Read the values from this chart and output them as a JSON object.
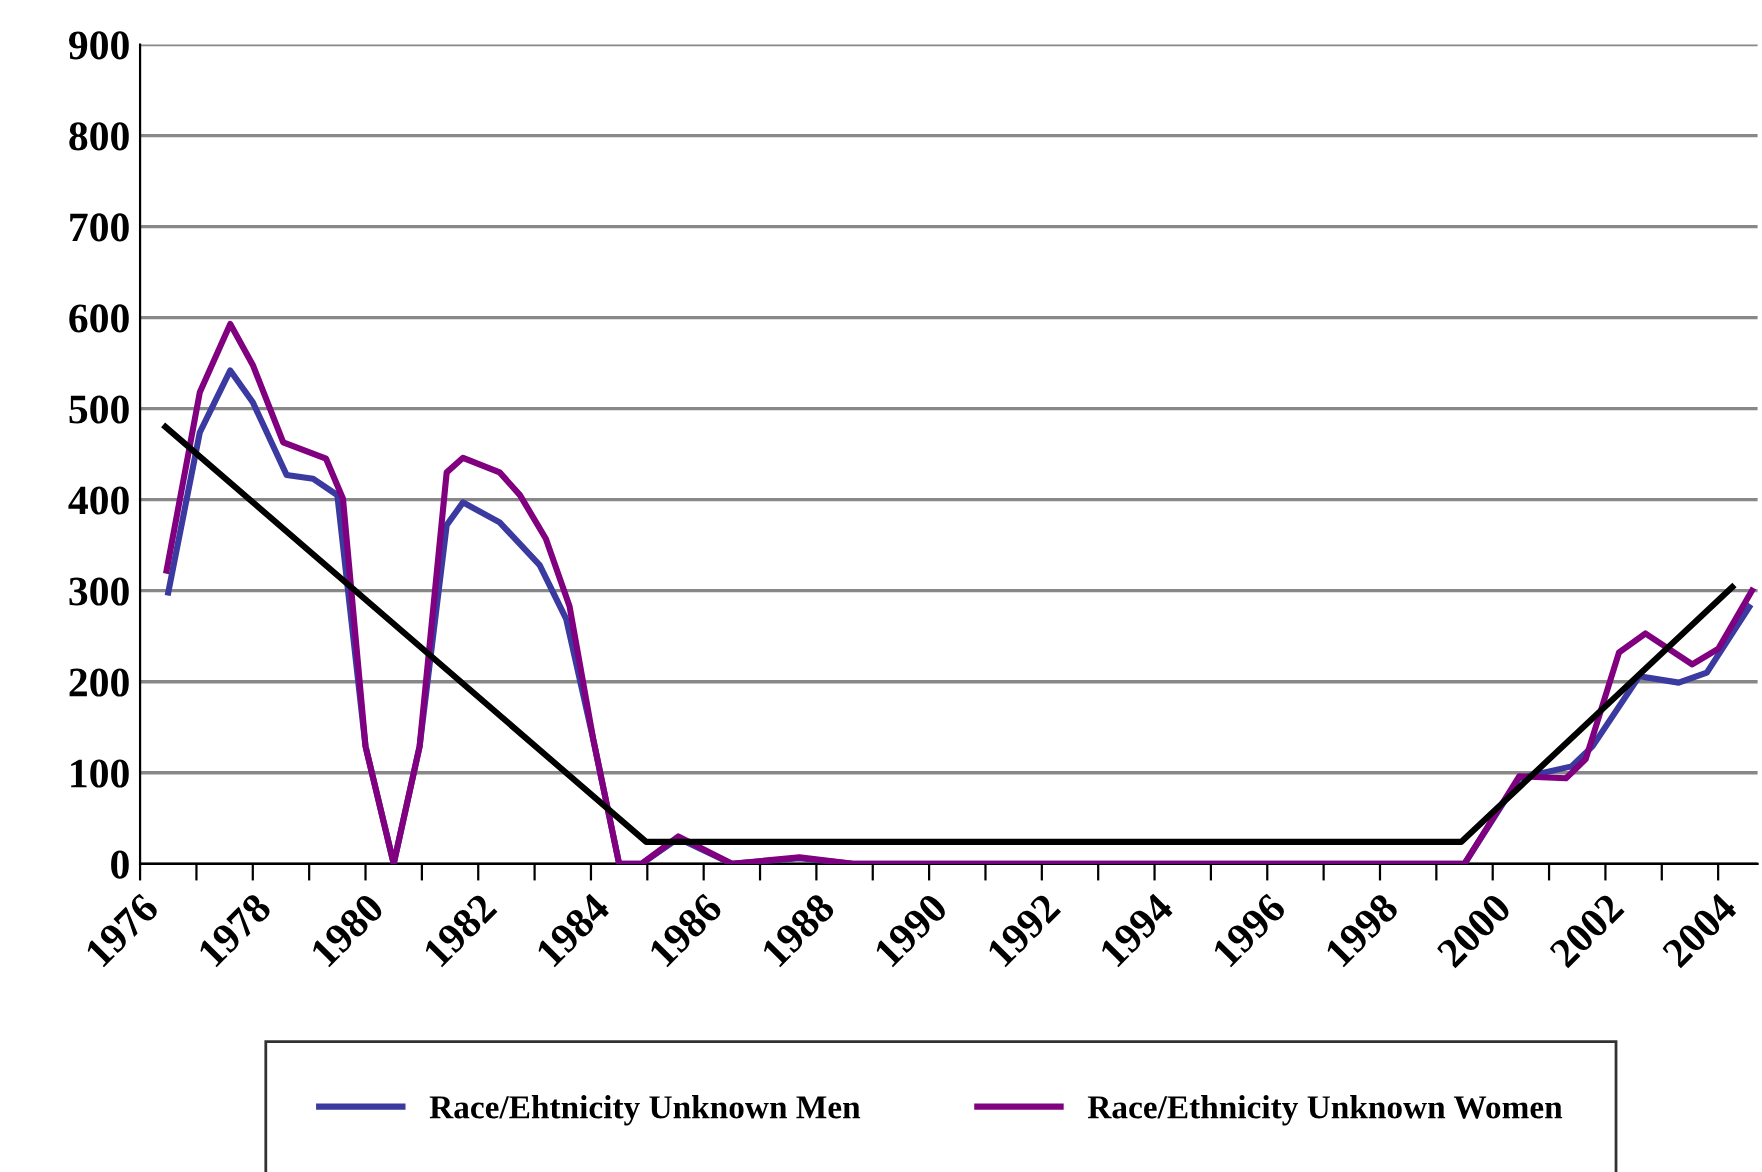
{
  "chart_data": {
    "type": "line",
    "series": [
      {
        "name": "Race/Ehtnicity Unknown Men",
        "color": "#3a3aa0",
        "x": [
          1976.5,
          1977.06,
          1977.6,
          1978.0,
          1978.6,
          1979.07,
          1979.5,
          1980.0,
          1980.5,
          1980.96,
          1981.44,
          1981.73,
          1982.38,
          1983.09,
          1983.56,
          1984.04,
          1984.5,
          1984.9,
          1985.55,
          1986.5,
          1987.7,
          1988.65,
          1998.58,
          1999.5,
          2000.47,
          2001.4,
          2001.77,
          2002.6,
          2003.3,
          2003.8,
          2004.55
        ],
        "values": [
          298,
          474,
          542,
          507,
          427,
          423,
          405,
          129,
          0,
          129,
          372,
          397,
          375,
          328,
          269,
          137,
          0,
          0,
          28,
          0,
          6,
          0,
          0,
          0,
          94,
          107,
          129,
          206,
          199,
          210,
          282
        ]
      },
      {
        "name": "Race/Ethnicity Unknown Women",
        "color": "#800080",
        "x": [
          1976.47,
          1977.06,
          1977.6,
          1978.0,
          1978.54,
          1979.3,
          1979.6,
          1980.0,
          1980.5,
          1980.96,
          1981.44,
          1981.73,
          1982.38,
          1982.74,
          1983.2,
          1983.62,
          1984.04,
          1984.5,
          1984.9,
          1985.55,
          1986.5,
          1987.7,
          1988.65,
          1998.58,
          1999.5,
          2000.47,
          2001.3,
          2001.65,
          2002.24,
          2002.71,
          2003.54,
          2004.0,
          2004.6
        ],
        "values": [
          322,
          518,
          593,
          548,
          463,
          445,
          401,
          129,
          0,
          129,
          430,
          446,
          430,
          405,
          357,
          283,
          137,
          0,
          0,
          30,
          0,
          7,
          0,
          0,
          0,
          96,
          94,
          115,
          232,
          253,
          219,
          236,
          300
        ]
      },
      {
        "color": "#000000",
        "x": [
          1976.45,
          1984.98,
          1999.44,
          2004.25
        ],
        "values": [
          480,
          24,
          24,
          304
        ]
      }
    ],
    "xlim": [
      1976,
      2004.7
    ],
    "xticks": [
      1976,
      {
        "value": 1977,
        "label": null
      },
      1978,
      {
        "value": 1979,
        "label": null
      },
      1980,
      {
        "value": 1981,
        "label": null
      },
      1982,
      {
        "value": 1983,
        "label": null
      },
      1984,
      {
        "value": 1985,
        "label": null
      },
      1986,
      {
        "value": 1987,
        "label": null
      },
      1988,
      {
        "value": 1989,
        "label": null
      },
      1990,
      {
        "value": 1991,
        "label": null
      },
      1992,
      {
        "value": 1993,
        "label": null
      },
      1994,
      {
        "value": 1995,
        "label": null
      },
      1996,
      {
        "value": 1997,
        "label": null
      },
      1998,
      {
        "value": 1999,
        "label": null
      },
      2000,
      {
        "value": 2001,
        "label": null
      },
      2002,
      {
        "value": 2003,
        "label": null
      },
      2004
    ],
    "ylim": [
      0,
      900
    ],
    "yticks": [
      0,
      100,
      200,
      300,
      400,
      500,
      600,
      700,
      800,
      900
    ],
    "grid": "y",
    "legend": "bottom",
    "marker": "none",
    "line_style": "solid"
  }
}
